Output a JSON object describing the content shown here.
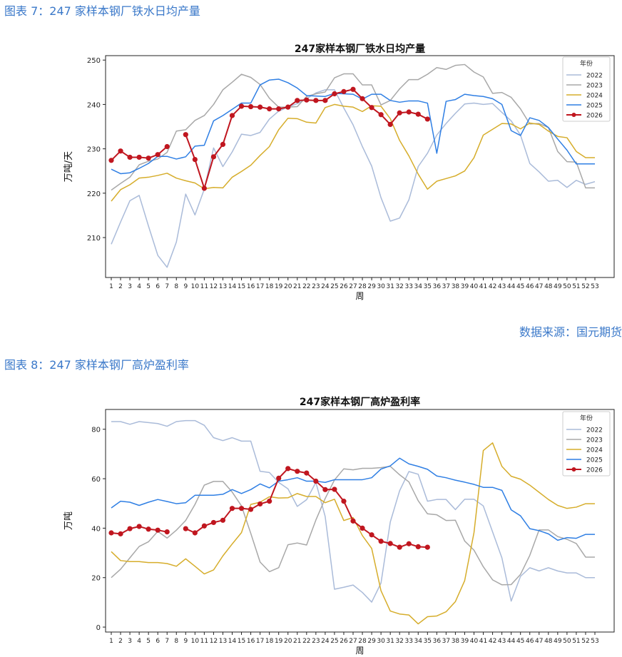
{
  "captions": {
    "fig7": "图表 7：247 家样本钢厂铁水日均产量",
    "fig8": "图表 8：247 家样本钢厂高炉盈利率",
    "source": "数据来源：国元期货"
  },
  "chart_data": [
    {
      "type": "line",
      "title": "247家样本钢厂铁水日均产量",
      "xlabel": "周",
      "ylabel": "万吨/天",
      "x": [
        1,
        2,
        3,
        4,
        5,
        6,
        7,
        8,
        9,
        10,
        11,
        12,
        13,
        14,
        15,
        16,
        17,
        18,
        19,
        20,
        21,
        22,
        23,
        24,
        25,
        26,
        27,
        28,
        29,
        30,
        31,
        32,
        33,
        34,
        35,
        36,
        37,
        38,
        39,
        40,
        41,
        42,
        43,
        44,
        45,
        46,
        47,
        48,
        49,
        50,
        51,
        52,
        53
      ],
      "ylim": [
        201,
        251
      ],
      "yticks": [
        210,
        220,
        230,
        240,
        250
      ],
      "grid": false,
      "legend": {
        "title": "年份",
        "placement": "top-right"
      },
      "series": [
        {
          "name": "2022",
          "color": "#aabbd9",
          "values": [
            208.5,
            213.5,
            218.3,
            219.5,
            212.6,
            206.0,
            203.3,
            209.0,
            219.8,
            215.1,
            220.9,
            230.2,
            226.0,
            229.3,
            233.3,
            233.0,
            233.7,
            236.7,
            238.5,
            239.4,
            240.2,
            241.3,
            242.6,
            243.3,
            243.3,
            239.2,
            235.4,
            230.5,
            226.1,
            219.0,
            213.7,
            214.4,
            218.5,
            226.0,
            229.0,
            233.1,
            235.7,
            238.0,
            240.1,
            240.3,
            240.0,
            240.2,
            238.2,
            236.3,
            233.1,
            226.7,
            224.8,
            222.7,
            222.9,
            221.3,
            222.9,
            222.0,
            222.6
          ]
        },
        {
          "name": "2023",
          "color": "#a8a8a8",
          "values": [
            220.7,
            222.2,
            223.6,
            226.4,
            227.2,
            227.7,
            229.2,
            234.0,
            234.3,
            236.4,
            237.5,
            240.0,
            243.3,
            245.0,
            246.8,
            246.1,
            244.5,
            241.4,
            239.4,
            239.4,
            239.5,
            241.8,
            242.4,
            242.8,
            246.0,
            246.9,
            246.9,
            244.4,
            244.4,
            239.9,
            240.9,
            243.5,
            245.6,
            245.6,
            246.8,
            248.3,
            247.9,
            248.8,
            249.0,
            247.3,
            246.2,
            242.5,
            242.7,
            241.6,
            239.0,
            235.6,
            235.7,
            234.8,
            229.4,
            227.1,
            227.0,
            221.2,
            221.2
          ]
        },
        {
          "name": "2024",
          "color": "#d6ad2b",
          "values": [
            218.2,
            220.8,
            221.9,
            223.4,
            223.6,
            224.0,
            224.5,
            223.4,
            222.8,
            222.3,
            221.0,
            221.3,
            221.2,
            223.6,
            224.9,
            226.3,
            228.5,
            230.5,
            234.3,
            236.9,
            236.8,
            236.0,
            235.8,
            239.3,
            240.0,
            239.6,
            239.4,
            238.4,
            239.7,
            239.6,
            236.8,
            231.9,
            228.4,
            224.3,
            220.9,
            222.7,
            223.3,
            223.9,
            225.0,
            228.0,
            233.1,
            234.4,
            235.7,
            235.6,
            234.5,
            235.8,
            235.5,
            234.0,
            232.8,
            232.5,
            229.4,
            228.0,
            228.0
          ]
        },
        {
          "name": "2025",
          "color": "#2f7fe4",
          "values": [
            225.4,
            224.4,
            224.6,
            225.6,
            226.7,
            228.3,
            228.3,
            227.7,
            228.2,
            230.6,
            230.8,
            236.3,
            237.5,
            238.9,
            240.3,
            240.3,
            244.4,
            245.5,
            245.7,
            244.9,
            243.7,
            242.0,
            241.9,
            241.8,
            242.5,
            242.4,
            242.3,
            241.2,
            242.3,
            242.3,
            240.9,
            240.5,
            240.8,
            240.8,
            240.3,
            229.0,
            240.7,
            241.1,
            242.3,
            242.0,
            241.8,
            241.3,
            240.0,
            234.1,
            233.0,
            237.0,
            236.4,
            234.8,
            232.2,
            229.7,
            226.6,
            226.6,
            226.6
          ]
        },
        {
          "name": "2026",
          "color": "#c0161f",
          "marker": true,
          "values": [
            227.4,
            229.5,
            228.1,
            228.1,
            227.9,
            228.7,
            230.5,
            null,
            233.2,
            227.6,
            221.1,
            228.2,
            231.0,
            237.5,
            239.6,
            239.5,
            239.4,
            239.0,
            239.0,
            239.4,
            240.9,
            241.0,
            240.9,
            240.9,
            242.4,
            242.9,
            243.4,
            241.3,
            239.3,
            237.7,
            235.5,
            238.1,
            238.3,
            237.8,
            236.7,
            null,
            null,
            null,
            null,
            null,
            null,
            null,
            null,
            null,
            null,
            null,
            null,
            null,
            null,
            null,
            null,
            null,
            null
          ]
        }
      ]
    },
    {
      "type": "line",
      "title": "247家样本钢厂高炉盈利率",
      "xlabel": "周",
      "ylabel": "万吨",
      "x": [
        1,
        2,
        3,
        4,
        5,
        6,
        7,
        8,
        9,
        10,
        11,
        12,
        13,
        14,
        15,
        16,
        17,
        18,
        19,
        20,
        21,
        22,
        23,
        24,
        25,
        26,
        27,
        28,
        29,
        30,
        31,
        32,
        33,
        34,
        35,
        36,
        37,
        38,
        39,
        40,
        41,
        42,
        43,
        44,
        45,
        46,
        47,
        48,
        49,
        50,
        51,
        52,
        53
      ],
      "ylim": [
        -2,
        88
      ],
      "yticks": [
        0,
        20,
        40,
        60,
        80
      ],
      "grid": false,
      "legend": {
        "title": "年份",
        "placement": "top-right"
      },
      "series": [
        {
          "name": "2022",
          "color": "#aabbd9",
          "values": [
            83.1,
            83.1,
            82.0,
            83.1,
            82.7,
            82.3,
            81.2,
            83.1,
            83.5,
            83.5,
            81.6,
            76.6,
            75.4,
            76.6,
            75.2,
            75.2,
            63.0,
            62.5,
            58.5,
            55.9,
            48.8,
            51.5,
            58.5,
            44.7,
            15.3,
            16.1,
            17.0,
            14.0,
            10.1,
            17.8,
            42.5,
            55.1,
            62.9,
            61.8,
            50.9,
            51.6,
            51.6,
            47.5,
            51.7,
            51.7,
            49.0,
            38.5,
            28.0,
            10.5,
            20.5,
            24.0,
            22.7,
            24.0,
            22.7,
            21.9,
            21.9,
            20.0,
            20.0
          ]
        },
        {
          "name": "2023",
          "color": "#a8a8a8",
          "values": [
            20.0,
            23.4,
            28.0,
            32.6,
            34.5,
            38.7,
            36.0,
            39.2,
            43.1,
            49.6,
            57.4,
            58.9,
            58.9,
            54.6,
            49.0,
            37.9,
            26.3,
            22.4,
            24.0,
            33.3,
            34.0,
            33.2,
            43.3,
            52.0,
            59.5,
            64.0,
            63.6,
            64.2,
            64.2,
            64.5,
            65.0,
            61.6,
            58.7,
            51.1,
            45.8,
            45.4,
            43.1,
            43.2,
            34.8,
            31.1,
            24.4,
            19.1,
            17.1,
            17.2,
            21.3,
            29.0,
            39.3,
            39.3,
            36.6,
            35.5,
            33.8,
            28.3,
            28.3
          ]
        },
        {
          "name": "2024",
          "color": "#d6ad2b",
          "values": [
            30.5,
            26.9,
            26.5,
            26.5,
            26.1,
            26.1,
            25.7,
            24.6,
            27.6,
            24.6,
            21.5,
            23.1,
            28.8,
            33.6,
            38.2,
            49.6,
            50.5,
            52.7,
            52.2,
            52.3,
            54.0,
            52.8,
            52.8,
            50.3,
            51.7,
            43.1,
            44.3,
            37.0,
            31.8,
            14.7,
            6.5,
            5.3,
            4.9,
            1.3,
            4.2,
            4.5,
            6.2,
            10.3,
            18.8,
            38.2,
            71.4,
            74.5,
            65.0,
            61.0,
            59.8,
            57.4,
            54.5,
            51.6,
            49.2,
            48.0,
            48.5,
            49.9,
            49.9
          ]
        },
        {
          "name": "2025",
          "color": "#2f7fe4",
          "values": [
            48.2,
            50.9,
            50.5,
            49.2,
            50.5,
            51.6,
            50.8,
            49.9,
            50.3,
            53.3,
            53.3,
            53.3,
            53.7,
            55.6,
            54.0,
            55.6,
            57.9,
            56.3,
            59.0,
            59.6,
            60.4,
            59.0,
            59.0,
            58.5,
            59.6,
            59.6,
            59.6,
            59.6,
            60.4,
            63.9,
            65.2,
            68.3,
            66.0,
            65.0,
            63.8,
            61.1,
            60.4,
            59.4,
            58.6,
            57.7,
            56.5,
            56.5,
            55.3,
            47.4,
            45.0,
            39.8,
            39.0,
            37.7,
            35.1,
            36.2,
            35.9,
            37.5,
            37.5
          ]
        },
        {
          "name": "2026",
          "color": "#c0161f",
          "marker": true,
          "values": [
            38.1,
            37.7,
            39.8,
            40.7,
            39.6,
            39.2,
            38.5,
            null,
            39.8,
            38.1,
            40.9,
            42.3,
            43.2,
            48.0,
            48.0,
            47.6,
            49.8,
            50.9,
            60.2,
            64.1,
            63.0,
            62.3,
            59.0,
            55.6,
            55.7,
            50.9,
            42.9,
            40.0,
            37.3,
            34.7,
            33.8,
            32.3,
            33.7,
            32.5,
            32.3,
            null,
            null,
            null,
            null,
            null,
            null,
            null,
            null,
            null,
            null,
            null,
            null,
            null,
            null,
            null,
            null,
            null,
            null
          ]
        }
      ]
    }
  ]
}
